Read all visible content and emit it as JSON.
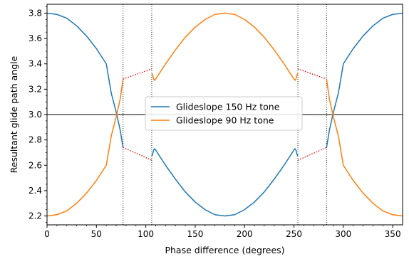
{
  "chart_data": {
    "type": "line",
    "xlabel": "Phase difference (degrees)",
    "ylabel": "Resultant glide path angle",
    "xlim": [
      0,
      360
    ],
    "ylim": [
      2.13,
      3.87
    ],
    "x_ticks": [
      0,
      50,
      100,
      150,
      200,
      250,
      300,
      350
    ],
    "y_ticks": [
      2.2,
      2.4,
      2.6,
      2.8,
      3.0,
      3.2,
      3.4,
      3.6,
      3.8
    ],
    "grid": false,
    "legend_position": "center",
    "reference_line": {
      "y": 3.0,
      "color": "#555555"
    },
    "vertical_markers": [
      77,
      106,
      254,
      283
    ],
    "series": [
      {
        "name": "Glideslope 150 Hz tone",
        "color": "#1f77b4",
        "segments": [
          [
            [
              0,
              3.8
            ],
            [
              10,
              3.79
            ],
            [
              20,
              3.76
            ],
            [
              30,
              3.7
            ],
            [
              40,
              3.62
            ],
            [
              50,
              3.52
            ],
            [
              60,
              3.4
            ],
            [
              65,
              3.17
            ],
            [
              70,
              3.02
            ],
            [
              74,
              2.88
            ],
            [
              77,
              2.74
            ]
          ],
          [
            [
              106,
              2.67
            ],
            [
              107,
              2.69
            ],
            [
              108,
              2.72
            ],
            [
              109,
              2.73
            ],
            [
              110,
              2.72
            ],
            [
              120,
              2.6
            ],
            [
              130,
              2.49
            ],
            [
              140,
              2.39
            ],
            [
              150,
              2.31
            ],
            [
              160,
              2.25
            ],
            [
              170,
              2.21
            ],
            [
              180,
              2.2
            ],
            [
              190,
              2.21
            ],
            [
              200,
              2.25
            ],
            [
              210,
              2.31
            ],
            [
              220,
              2.39
            ],
            [
              230,
              2.49
            ],
            [
              240,
              2.6
            ],
            [
              250,
              2.72
            ],
            [
              251,
              2.73
            ],
            [
              252,
              2.72
            ],
            [
              253,
              2.69
            ],
            [
              254,
              2.67
            ]
          ],
          [
            [
              283,
              2.74
            ],
            [
              286,
              2.88
            ],
            [
              290,
              3.02
            ],
            [
              295,
              3.17
            ],
            [
              300,
              3.4
            ],
            [
              310,
              3.52
            ],
            [
              320,
              3.62
            ],
            [
              330,
              3.7
            ],
            [
              340,
              3.76
            ],
            [
              350,
              3.79
            ],
            [
              360,
              3.8
            ]
          ]
        ],
        "dotted_links": [
          [
            [
              77,
              2.74
            ],
            [
              106,
              2.64
            ]
          ],
          [
            [
              254,
              2.64
            ],
            [
              283,
              2.74
            ]
          ]
        ]
      },
      {
        "name": "Glideslope 90 Hz tone",
        "color": "#ff7f0e",
        "segments": [
          [
            [
              0,
              2.2
            ],
            [
              10,
              2.21
            ],
            [
              20,
              2.24
            ],
            [
              30,
              2.3
            ],
            [
              40,
              2.38
            ],
            [
              50,
              2.48
            ],
            [
              60,
              2.6
            ],
            [
              65,
              2.83
            ],
            [
              70,
              2.98
            ],
            [
              74,
              3.12
            ],
            [
              77,
              3.28
            ]
          ],
          [
            [
              106,
              3.33
            ],
            [
              107,
              3.31
            ],
            [
              108,
              3.28
            ],
            [
              109,
              3.27
            ],
            [
              110,
              3.28
            ],
            [
              120,
              3.4
            ],
            [
              130,
              3.51
            ],
            [
              140,
              3.61
            ],
            [
              150,
              3.69
            ],
            [
              160,
              3.75
            ],
            [
              170,
              3.79
            ],
            [
              180,
              3.8
            ],
            [
              190,
              3.79
            ],
            [
              200,
              3.75
            ],
            [
              210,
              3.69
            ],
            [
              220,
              3.61
            ],
            [
              230,
              3.51
            ],
            [
              240,
              3.4
            ],
            [
              250,
              3.28
            ],
            [
              251,
              3.27
            ],
            [
              252,
              3.28
            ],
            [
              253,
              3.31
            ],
            [
              254,
              3.33
            ]
          ],
          [
            [
              283,
              3.28
            ],
            [
              286,
              3.12
            ],
            [
              290,
              2.98
            ],
            [
              295,
              2.83
            ],
            [
              300,
              2.6
            ],
            [
              310,
              2.48
            ],
            [
              320,
              2.38
            ],
            [
              330,
              2.3
            ],
            [
              340,
              2.24
            ],
            [
              350,
              2.21
            ],
            [
              360,
              2.2
            ]
          ]
        ],
        "dotted_links": [
          [
            [
              77,
              3.28
            ],
            [
              106,
              3.36
            ]
          ],
          [
            [
              254,
              3.36
            ],
            [
              283,
              3.28
            ]
          ]
        ]
      }
    ],
    "link_color": "#e8000b"
  }
}
